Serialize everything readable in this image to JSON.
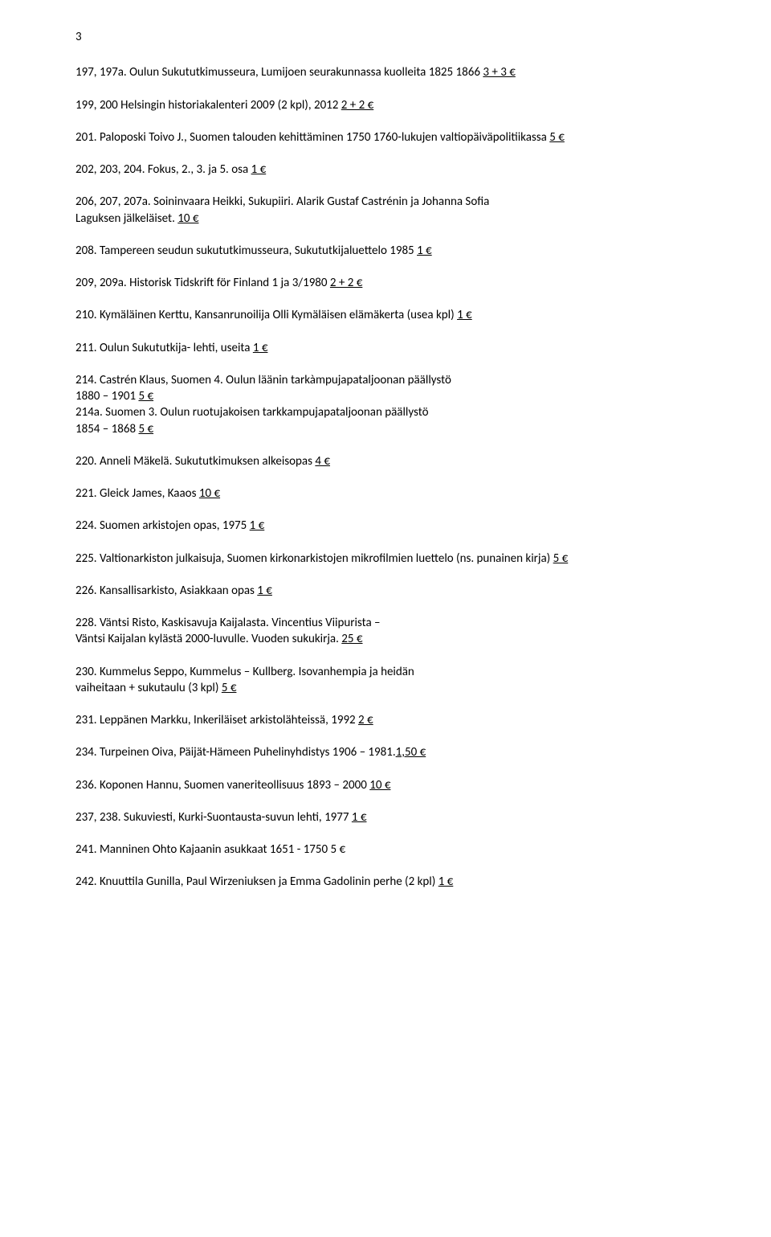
{
  "page_number": "3",
  "entries": [
    {
      "key": "e197",
      "parts": [
        {
          "t": "197, 197a. Oulun Sukututkimusseura, Lumijoen seurakunnassa kuolleita 1825 1866 ",
          "u": false
        },
        {
          "t": "3 + 3 €",
          "u": true
        }
      ]
    },
    {
      "key": "e199",
      "parts": [
        {
          "t": "199, 200 Helsingin historiakalenteri 2009 (2 kpl), 2012 ",
          "u": false
        },
        {
          "t": "2 + 2 €",
          "u": true
        }
      ]
    },
    {
      "key": "e201",
      "parts": [
        {
          "t": "201. Paloposki Toivo J., Suomen talouden kehittäminen 1750 1760-lukujen valtiopäiväpolitiikassa ",
          "u": false
        },
        {
          "t": "5 €",
          "u": true
        }
      ]
    },
    {
      "key": "e202",
      "parts": [
        {
          "t": "202, 203, 204. Fokus, 2., 3. ja 5. osa ",
          "u": false
        },
        {
          "t": "1 €",
          "u": true
        }
      ]
    },
    {
      "key": "e206",
      "parts": [
        {
          "t": "206, 207, 207a. Soininvaara Heikki, Sukupiiri. Alarik Gustaf Castrénin ja Johanna Sofia\n Laguksen jälkeläiset. ",
          "u": false
        },
        {
          "t": "10 €",
          "u": true
        }
      ]
    },
    {
      "key": "e208",
      "parts": [
        {
          "t": "208. Tampereen seudun sukututkimusseura, Sukututkijaluettelo 1985 ",
          "u": false
        },
        {
          "t": "1 €",
          "u": true
        }
      ]
    },
    {
      "key": "e209",
      "parts": [
        {
          "t": "209, 209a. Historisk Tidskrift för Finland 1 ja 3/1980 ",
          "u": false
        },
        {
          "t": "2 + 2 €",
          "u": true
        }
      ]
    },
    {
      "key": "e210",
      "parts": [
        {
          "t": "210. Kymäläinen Kerttu, Kansanrunoilija Olli Kymäläisen elämäkerta (usea kpl) ",
          "u": false
        },
        {
          "t": "1 €",
          "u": true
        }
      ]
    },
    {
      "key": "e211",
      "parts": [
        {
          "t": "211. Oulun Sukututkija- lehti, useita ",
          "u": false
        },
        {
          "t": "1 €",
          "u": true
        }
      ]
    },
    {
      "key": "e214",
      "parts": [
        {
          "t": "214. Castrén Klaus, Suomen 4. Oulun läänin tarkàmpujapataljoonan päällystö\n 1880 – 1901 ",
          "u": false
        },
        {
          "t": "5 €",
          "u": true
        },
        {
          "t": "\n214a. Suomen 3. Oulun ruotujakoisen tarkkampujapataljoonan päällystö\n1854 – 1868 ",
          "u": false
        },
        {
          "t": "5 €",
          "u": true
        }
      ]
    },
    {
      "key": "e220",
      "parts": [
        {
          "t": "220. Anneli Mäkelä. Sukututkimuksen alkeisopas ",
          "u": false
        },
        {
          "t": "4 €",
          "u": true
        }
      ]
    },
    {
      "key": "e221",
      "parts": [
        {
          "t": "221. Gleick James, Kaaos ",
          "u": false
        },
        {
          "t": "10 €",
          "u": true
        }
      ]
    },
    {
      "key": "e224",
      "parts": [
        {
          "t": "224. Suomen arkistojen opas, 1975 ",
          "u": false
        },
        {
          "t": "1 €",
          "u": true
        }
      ]
    },
    {
      "key": "e225",
      "parts": [
        {
          "t": "225. Valtionarkiston julkaisuja, Suomen kirkonarkistojen mikrofilmien luettelo (ns. punainen kirja) ",
          "u": false
        },
        {
          "t": "5 €",
          "u": true
        }
      ]
    },
    {
      "key": "e226",
      "parts": [
        {
          "t": "226. Kansallisarkisto, Asiakkaan opas ",
          "u": false
        },
        {
          "t": "1 €",
          "u": true
        }
      ]
    },
    {
      "key": "e228",
      "parts": [
        {
          "t": "228. Väntsi Risto, Kaskisavuja Kaijalasta. Vincentius Viipurista –\nVäntsi Kaijalan kylästä 2000-luvulle. Vuoden sukukirja. ",
          "u": false
        },
        {
          "t": "25 €",
          "u": true
        }
      ]
    },
    {
      "key": "e230",
      "parts": [
        {
          "t": "230. Kummelus Seppo, Kummelus – Kullberg. Isovanhempia ja heidän\n vaiheitaan + sukutaulu (3 kpl) ",
          "u": false
        },
        {
          "t": "5 €",
          "u": true
        }
      ]
    },
    {
      "key": "e231",
      "parts": [
        {
          "t": "231. Leppänen Markku, Inkeriläiset arkistolähteissä, 1992 ",
          "u": false
        },
        {
          "t": "2 €",
          "u": true
        }
      ]
    },
    {
      "key": "e234",
      "parts": [
        {
          "t": "234. Turpeinen Oiva, Päijät-Hämeen Puhelinyhdistys 1906 – 1981.",
          "u": false
        },
        {
          "t": "1,50 €",
          "u": true
        }
      ]
    },
    {
      "key": "e236",
      "parts": [
        {
          "t": "236. Koponen Hannu, Suomen vaneriteollisuus 1893 – 2000 ",
          "u": false
        },
        {
          "t": "10 €",
          "u": true
        }
      ]
    },
    {
      "key": "e237",
      "parts": [
        {
          "t": "237, 238. Sukuviesti, Kurki-Suontausta-suvun lehti, 1977  ",
          "u": false
        },
        {
          "t": "1 €",
          "u": true
        }
      ]
    },
    {
      "key": "e241",
      "parts": [
        {
          "t": "241. Manninen Ohto Kajaanin asukkaat 1651 - 1750 5 €",
          "u": false
        }
      ]
    },
    {
      "key": "e242",
      "parts": [
        {
          "t": "242. Knuuttila Gunilla, Paul Wirzeniuksen ja Emma Gadolinin perhe (2 kpl) ",
          "u": false
        },
        {
          "t": "1 €",
          "u": true
        }
      ]
    }
  ]
}
